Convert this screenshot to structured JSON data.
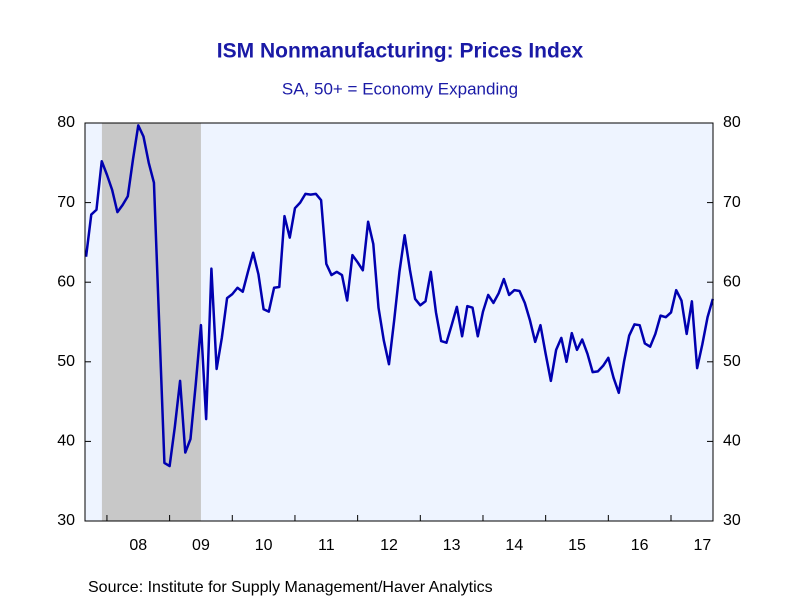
{
  "chart_data": {
    "type": "line",
    "title": "ISM Nonmanufacturing: Prices Index",
    "subtitle": "SA, 50+ = Economy Expanding",
    "source": "Source:  Institute for Supply Management/Haver Analytics",
    "color": "#0000b0",
    "x": [
      2007.667,
      2007.75,
      2007.833,
      2007.917,
      2008,
      2008.083,
      2008.167,
      2008.25,
      2008.333,
      2008.417,
      2008.5,
      2008.583,
      2008.667,
      2008.75,
      2008.833,
      2008.917,
      2009,
      2009.083,
      2009.167,
      2009.25,
      2009.333,
      2009.417,
      2009.5,
      2009.583,
      2009.667,
      2009.75,
      2009.833,
      2009.917,
      2010,
      2010.083,
      2010.167,
      2010.25,
      2010.333,
      2010.417,
      2010.5,
      2010.583,
      2010.667,
      2010.75,
      2010.833,
      2010.917,
      2011,
      2011.083,
      2011.167,
      2011.25,
      2011.333,
      2011.417,
      2011.5,
      2011.583,
      2011.667,
      2011.75,
      2011.833,
      2011.917,
      2012,
      2012.083,
      2012.167,
      2012.25,
      2012.333,
      2012.417,
      2012.5,
      2012.583,
      2012.667,
      2012.75,
      2012.833,
      2012.917,
      2013,
      2013.083,
      2013.167,
      2013.25,
      2013.333,
      2013.417,
      2013.5,
      2013.583,
      2013.667,
      2013.75,
      2013.833,
      2013.917,
      2014,
      2014.083,
      2014.167,
      2014.25,
      2014.333,
      2014.417,
      2014.5,
      2014.583,
      2014.667,
      2014.75,
      2014.833,
      2014.917,
      2015,
      2015.083,
      2015.167,
      2015.25,
      2015.333,
      2015.417,
      2015.5,
      2015.583,
      2015.667,
      2015.75,
      2015.833,
      2015.917,
      2016,
      2016.083,
      2016.167,
      2016.25,
      2016.333,
      2016.417,
      2016.5,
      2016.583,
      2016.667,
      2016.75,
      2016.833,
      2016.917,
      2017,
      2017.083,
      2017.167,
      2017.25,
      2017.333,
      2017.417,
      2017.5,
      2017.583,
      2017.667
    ],
    "values": [
      63.2,
      68.5,
      69.1,
      75.2,
      73.5,
      71.6,
      68.8,
      69.7,
      70.8,
      75.5,
      79.7,
      78.3,
      75.0,
      72.5,
      55.0,
      37.3,
      36.9,
      41.8,
      47.6,
      38.6,
      40.3,
      47.2,
      54.6,
      42.8,
      61.7,
      49.1,
      53.0,
      58.0,
      58.5,
      59.3,
      58.8,
      61.3,
      63.7,
      61.0,
      56.6,
      56.3,
      59.3,
      59.4,
      68.3,
      65.6,
      69.3,
      70.0,
      71.1,
      71.0,
      71.1,
      70.3,
      62.3,
      60.9,
      61.3,
      60.9,
      57.7,
      63.4,
      62.5,
      61.5,
      67.6,
      64.8,
      56.8,
      52.7,
      49.7,
      55.2,
      61.3,
      65.9,
      61.6,
      57.9,
      57.1,
      57.6,
      61.3,
      56.2,
      52.6,
      52.4,
      54.6,
      56.9,
      53.2,
      57.0,
      56.8,
      53.2,
      56.3,
      58.4,
      57.4,
      58.6,
      60.4,
      58.4,
      59.0,
      58.9,
      57.4,
      55.2,
      52.5,
      54.6,
      51.0,
      47.6,
      51.5,
      53.0,
      50.0,
      53.6,
      51.5,
      52.8,
      51.0,
      48.7,
      48.8,
      49.5,
      50.5,
      48.0,
      46.1,
      50.0,
      53.3,
      54.7,
      54.6,
      52.3,
      51.9,
      53.5,
      55.8,
      55.6,
      56.2,
      59.0,
      57.7,
      53.5,
      57.6,
      49.2,
      52.2,
      55.6,
      57.9
    ],
    "xlim": [
      2007.65,
      2017.67
    ],
    "xticks": [
      {
        "value": 2008.5,
        "label": "08"
      },
      {
        "value": 2009.5,
        "label": "09"
      },
      {
        "value": 2010.5,
        "label": "10"
      },
      {
        "value": 2011.5,
        "label": "11"
      },
      {
        "value": 2012.5,
        "label": "12"
      },
      {
        "value": 2013.5,
        "label": "13"
      },
      {
        "value": 2014.5,
        "label": "14"
      },
      {
        "value": 2015.5,
        "label": "15"
      },
      {
        "value": 2016.5,
        "label": "16"
      },
      {
        "value": 2017.5,
        "label": "17"
      }
    ],
    "xtick_marks": [
      2008,
      2009,
      2010,
      2011,
      2012,
      2013,
      2014,
      2015,
      2016,
      2017
    ],
    "ylim": [
      30,
      80
    ],
    "yticks": [
      30,
      40,
      50,
      60,
      70,
      80
    ],
    "y2lim": [
      30,
      80
    ],
    "y2ticks": [
      30,
      40,
      50,
      60,
      70,
      80
    ],
    "shaded_regions": [
      [
        2007.92,
        2009.5
      ]
    ],
    "shade_color": "#c8c8c8",
    "plot_background": "#eef4ff",
    "grid": false
  }
}
